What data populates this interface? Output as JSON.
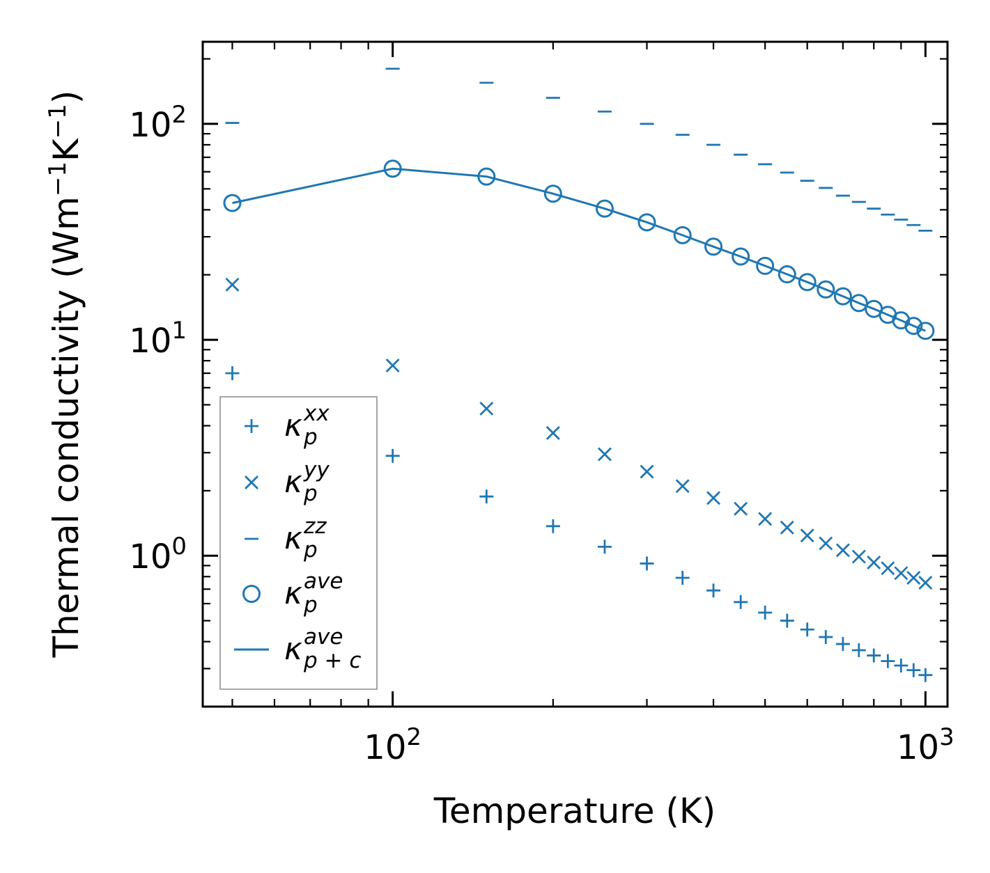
{
  "chart_data": {
    "type": "scatter",
    "xscale": "log",
    "yscale": "log",
    "xlabel": "Temperature (K)",
    "ylabel_text": "Thermal conductivity (Wm",
    "ylabel_unit1": "K",
    "ylabel_exp": "−1",
    "ylabel_close": ")",
    "xlim": [
      44,
      1100
    ],
    "ylim": [
      0.2,
      240
    ],
    "color": "#1f77b4",
    "x_ticks": [
      {
        "value": 100,
        "base": "10",
        "exp": "2"
      },
      {
        "value": 1000,
        "base": "10",
        "exp": "3"
      }
    ],
    "y_ticks": [
      {
        "value": 1,
        "base": "10",
        "exp": "0"
      },
      {
        "value": 10,
        "base": "10",
        "exp": "1"
      },
      {
        "value": 100,
        "base": "10",
        "exp": "2"
      }
    ],
    "x": [
      50,
      100,
      150,
      200,
      250,
      300,
      350,
      400,
      450,
      500,
      550,
      600,
      650,
      700,
      750,
      800,
      850,
      900,
      950,
      1000
    ],
    "series": [
      {
        "name": "kxx",
        "marker": "plus",
        "label": {
          "sym": "κ",
          "sub": "p",
          "sup": "xx"
        },
        "values": [
          7.0,
          2.9,
          1.88,
          1.37,
          1.1,
          0.92,
          0.79,
          0.69,
          0.61,
          0.545,
          0.5,
          0.455,
          0.42,
          0.39,
          0.365,
          0.345,
          0.325,
          0.31,
          0.295,
          0.28
        ]
      },
      {
        "name": "kyy",
        "marker": "x",
        "label": {
          "sym": "κ",
          "sub": "p",
          "sup": "yy"
        },
        "values": [
          18,
          7.6,
          4.8,
          3.7,
          2.95,
          2.45,
          2.1,
          1.85,
          1.65,
          1.48,
          1.35,
          1.24,
          1.14,
          1.06,
          0.99,
          0.93,
          0.875,
          0.83,
          0.79,
          0.75
        ]
      },
      {
        "name": "kzz",
        "marker": "hline",
        "label": {
          "sym": "κ",
          "sub": "p",
          "sup": "zz"
        },
        "values": [
          101,
          180,
          155,
          132,
          114,
          100,
          89,
          80,
          72,
          65,
          59.5,
          54.5,
          50.5,
          46.5,
          43.5,
          40.5,
          38,
          36,
          34,
          32
        ]
      },
      {
        "name": "kave",
        "marker": "circle",
        "label": {
          "sym": "κ",
          "sub": "p",
          "sup": "ave"
        },
        "values": [
          43,
          62,
          57,
          47.5,
          40.5,
          35,
          30.5,
          27,
          24.3,
          22,
          20.1,
          18.5,
          17.1,
          15.9,
          14.8,
          13.9,
          13.05,
          12.3,
          11.6,
          11.0
        ]
      },
      {
        "name": "kave_pc",
        "marker": "line",
        "label": {
          "sym": "κ",
          "sub": "p + c",
          "sup": "ave"
        },
        "values": [
          43,
          62,
          57,
          47.5,
          40.5,
          35,
          30.5,
          27,
          24.3,
          22,
          20.1,
          18.5,
          17.1,
          15.9,
          14.8,
          13.9,
          13.05,
          12.3,
          11.6,
          11.0
        ]
      }
    ],
    "legend_position": "lower-left"
  }
}
